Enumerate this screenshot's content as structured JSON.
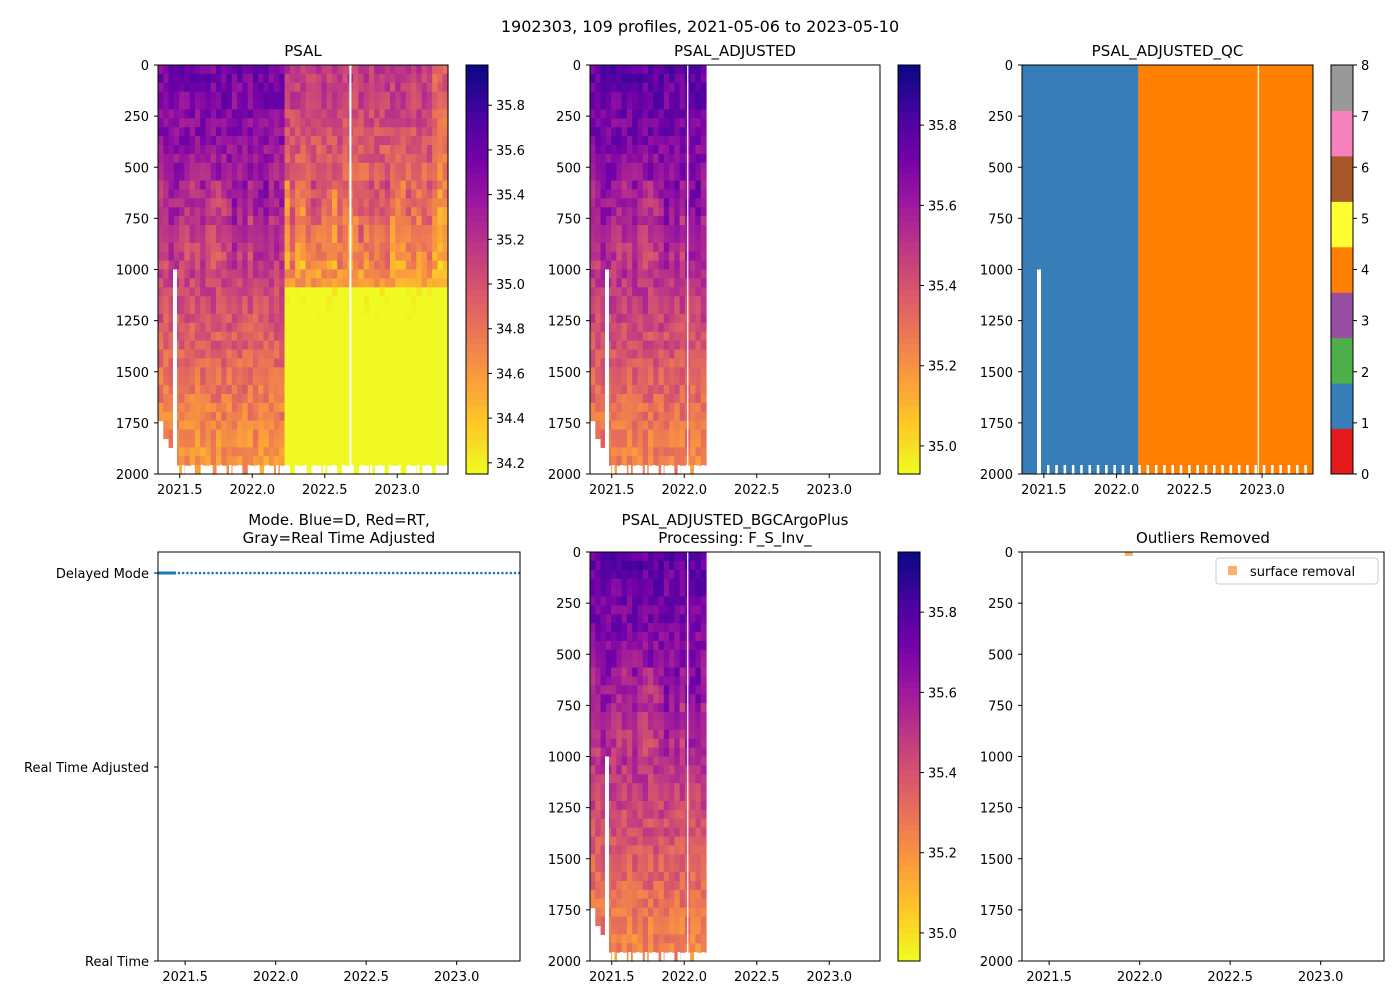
{
  "suptitle": "1902303, 109 profiles, 2021-05-06 to 2023-05-10",
  "colors": {
    "plasma": [
      "#0d0887",
      "#46039f",
      "#7201a8",
      "#9c179e",
      "#bd3786",
      "#d8576b",
      "#ed7953",
      "#fb9f3a",
      "#fdca26",
      "#f0f921"
    ],
    "qc": [
      "#e41a1c",
      "#377eb8",
      "#4daf4a",
      "#984ea3",
      "#ff7f00",
      "#ffff33",
      "#a65628",
      "#f781bf",
      "#999999"
    ],
    "mode_blue": "#1f77b4",
    "outlier": "#fdae6b"
  },
  "chart_data": [
    {
      "id": "psal",
      "type": "heatmap",
      "title": "PSAL",
      "xlim": [
        2021.35,
        2023.35
      ],
      "ylim": [
        2000,
        0
      ],
      "xticks": [
        "2021.5",
        "2022.0",
        "2022.5",
        "2023.0"
      ],
      "xtick_values": [
        2021.5,
        2022.0,
        2022.5,
        2023.0
      ],
      "yticks": [
        "0",
        "250",
        "500",
        "750",
        "1000",
        "1250",
        "1500",
        "1750",
        "2000"
      ],
      "ytick_values": [
        0,
        250,
        500,
        750,
        1000,
        1250,
        1500,
        1750,
        2000
      ],
      "data_end": 2023.35,
      "colorbar": {
        "min": 34.15,
        "max": 35.98,
        "ticks": [
          "34.2",
          "34.4",
          "34.6",
          "34.8",
          "35.0",
          "35.2",
          "35.4",
          "35.6",
          "35.8"
        ],
        "tick_values": [
          34.2,
          34.4,
          34.6,
          34.8,
          35.0,
          35.2,
          35.4,
          35.6,
          35.8
        ]
      }
    },
    {
      "id": "psal_adj",
      "type": "heatmap",
      "title": "PSAL_ADJUSTED",
      "xlim": [
        2021.35,
        2023.35
      ],
      "ylim": [
        2000,
        0
      ],
      "xticks": [
        "2021.5",
        "2022.0",
        "2022.5",
        "2023.0"
      ],
      "xtick_values": [
        2021.5,
        2022.0,
        2022.5,
        2023.0
      ],
      "yticks": [
        "0",
        "250",
        "500",
        "750",
        "1000",
        "1250",
        "1500",
        "1750",
        "2000"
      ],
      "ytick_values": [
        0,
        250,
        500,
        750,
        1000,
        1250,
        1500,
        1750,
        2000
      ],
      "data_end": 2022.15,
      "colorbar": {
        "min": 34.93,
        "max": 35.95,
        "ticks": [
          "35.0",
          "35.2",
          "35.4",
          "35.6",
          "35.8"
        ],
        "tick_values": [
          35.0,
          35.2,
          35.4,
          35.6,
          35.8
        ]
      }
    },
    {
      "id": "psal_qc",
      "type": "heatmap",
      "title": "PSAL_ADJUSTED_QC",
      "xlim": [
        2021.35,
        2023.35
      ],
      "ylim": [
        2000,
        0
      ],
      "xticks": [
        "2021.5",
        "2022.0",
        "2022.5",
        "2023.0"
      ],
      "xtick_values": [
        2021.5,
        2022.0,
        2022.5,
        2023.0
      ],
      "yticks": [
        "0",
        "250",
        "500",
        "750",
        "1000",
        "1250",
        "1500",
        "1750",
        "2000"
      ],
      "ytick_values": [
        0,
        250,
        500,
        750,
        1000,
        1250,
        1500,
        1750,
        2000
      ],
      "qc_change_x": 2022.15,
      "colorbar": {
        "min": 0,
        "max": 8,
        "ticks": [
          "0",
          "1",
          "2",
          "3",
          "4",
          "5",
          "6",
          "7",
          "8"
        ],
        "tick_values": [
          0,
          1,
          2,
          3,
          4,
          5,
          6,
          7,
          8
        ]
      }
    },
    {
      "id": "mode",
      "type": "scatter",
      "title": "Mode. Blue=D, Red=RT,",
      "title2": "Gray=Real Time Adjusted",
      "xlim": [
        2021.35,
        2023.35
      ],
      "xticks": [
        "2021.5",
        "2022.0",
        "2022.5",
        "2023.0"
      ],
      "xtick_values": [
        2021.5,
        2022.0,
        2022.5,
        2023.0
      ],
      "ycats": [
        "Real Time",
        "Real Time Adjusted",
        "Delayed Mode"
      ],
      "ycat_values": [
        0,
        1,
        2
      ],
      "series": [
        {
          "name": "D",
          "y": 2,
          "x_start": 2021.35,
          "x_end": 2023.35
        }
      ]
    },
    {
      "id": "bgc",
      "type": "heatmap",
      "title": "PSAL_ADJUSTED_BGCArgoPlus",
      "title2": "Processing: F_S_Inv_",
      "xlim": [
        2021.35,
        2023.35
      ],
      "ylim": [
        2000,
        0
      ],
      "xticks": [
        "2021.5",
        "2022.0",
        "2022.5",
        "2023.0"
      ],
      "xtick_values": [
        2021.5,
        2022.0,
        2022.5,
        2023.0
      ],
      "yticks": [
        "0",
        "250",
        "500",
        "750",
        "1000",
        "1250",
        "1500",
        "1750",
        "2000"
      ],
      "ytick_values": [
        0,
        250,
        500,
        750,
        1000,
        1250,
        1500,
        1750,
        2000
      ],
      "data_end": 2022.15,
      "colorbar": {
        "min": 34.93,
        "max": 35.95,
        "ticks": [
          "35.0",
          "35.2",
          "35.4",
          "35.6",
          "35.8"
        ],
        "tick_values": [
          35.0,
          35.2,
          35.4,
          35.6,
          35.8
        ]
      }
    },
    {
      "id": "outliers",
      "type": "scatter",
      "title": "Outliers Removed",
      "xlim": [
        2021.35,
        2023.35
      ],
      "ylim": [
        2000,
        0
      ],
      "xticks": [
        "2021.5",
        "2022.0",
        "2022.5",
        "2023.0"
      ],
      "xtick_values": [
        2021.5,
        2022.0,
        2022.5,
        2023.0
      ],
      "yticks": [
        "0",
        "250",
        "500",
        "750",
        "1000",
        "1250",
        "1500",
        "1750",
        "2000"
      ],
      "ytick_values": [
        0,
        250,
        500,
        750,
        1000,
        1250,
        1500,
        1750,
        2000
      ],
      "points": [
        {
          "x": 2021.94,
          "y": 0
        }
      ],
      "legend": [
        "surface removal"
      ],
      "legend_position": "upper right"
    }
  ]
}
